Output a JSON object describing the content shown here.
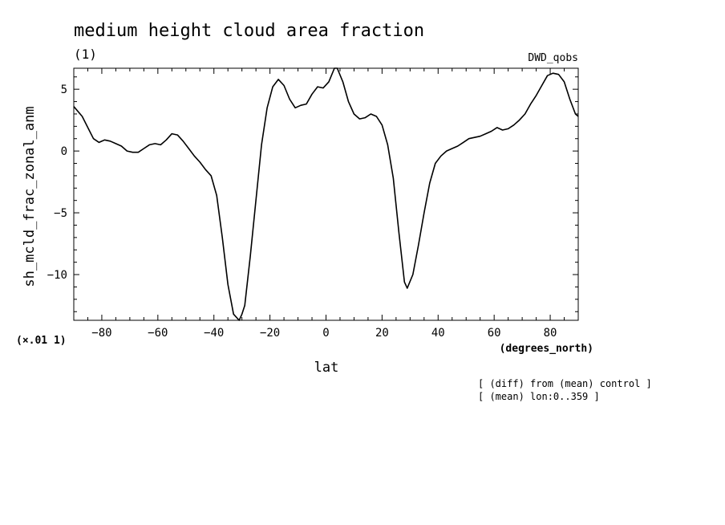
{
  "header": {
    "title": "medium height cloud area fraction",
    "subtitle": "(1)",
    "dataset": "DWD_qobs"
  },
  "axes": {
    "ylabel": "sh_mcld_frac_zonal_anm",
    "xlabel": "lat",
    "x_units": "(degrees_north)",
    "y_scale": "(×.01 1)",
    "x_tick_labels": [
      "−80",
      "−60",
      "−40",
      "−20",
      "0",
      "20",
      "40",
      "60",
      "80"
    ],
    "y_tick_labels": [
      "5",
      "0",
      "−5",
      "−10"
    ]
  },
  "notes": {
    "line1": "[ (diff) from (mean) control ]",
    "line2": "[ (mean) lon:0..359 ]"
  },
  "chart_data": {
    "type": "line",
    "title": "medium height cloud area fraction",
    "subtitle": "(1)",
    "xlabel": "lat",
    "ylabel": "sh_mcld_frac_zonal_anm",
    "x_units": "degrees_north",
    "y_scale_factor": 0.01,
    "xlim": [
      -90,
      90
    ],
    "ylim": [
      -13.7,
      6.7
    ],
    "x_ticks": [
      -80,
      -60,
      -40,
      -20,
      0,
      20,
      40,
      60,
      80
    ],
    "y_ticks": [
      5,
      0,
      -5,
      -10
    ],
    "grid": false,
    "series": [
      {
        "name": "DWD_qobs",
        "x": [
          -90,
          -87,
          -85,
          -83,
          -81,
          -79,
          -77,
          -75,
          -73,
          -71,
          -69,
          -67,
          -65,
          -63,
          -61,
          -59,
          -57,
          -55,
          -53,
          -51,
          -49,
          -47,
          -45,
          -43,
          -41,
          -39,
          -37,
          -35,
          -33,
          -31,
          -30,
          -29,
          -27,
          -25,
          -23,
          -21,
          -19,
          -17,
          -15,
          -13,
          -11,
          -9,
          -7,
          -5,
          -3,
          -1,
          1,
          3,
          4,
          6,
          8,
          10,
          12,
          14,
          16,
          18,
          20,
          22,
          24,
          26,
          28,
          29,
          31,
          33,
          35,
          37,
          39,
          41,
          43,
          45,
          47,
          49,
          51,
          53,
          55,
          57,
          59,
          61,
          63,
          65,
          67,
          69,
          71,
          73,
          75,
          77,
          79,
          81,
          83,
          85,
          87,
          89,
          90
        ],
        "values": [
          3.6,
          2.8,
          1.9,
          1.0,
          0.7,
          0.9,
          0.8,
          0.6,
          0.4,
          0.0,
          -0.1,
          -0.1,
          0.2,
          0.5,
          0.6,
          0.5,
          0.9,
          1.4,
          1.3,
          0.8,
          0.2,
          -0.4,
          -0.9,
          -1.5,
          -2.0,
          -3.6,
          -7.0,
          -10.8,
          -13.2,
          -13.7,
          -13.2,
          -12.5,
          -8.5,
          -4.0,
          0.5,
          3.5,
          5.2,
          5.8,
          5.3,
          4.2,
          3.5,
          3.7,
          3.8,
          4.6,
          5.2,
          5.1,
          5.6,
          6.7,
          6.7,
          5.6,
          4.0,
          3.0,
          2.6,
          2.7,
          3.0,
          2.8,
          2.1,
          0.5,
          -2.2,
          -6.6,
          -10.6,
          -11.1,
          -10.0,
          -7.6,
          -5.0,
          -2.6,
          -1.0,
          -0.4,
          0.0,
          0.2,
          0.4,
          0.7,
          1.0,
          1.1,
          1.2,
          1.4,
          1.6,
          1.9,
          1.7,
          1.8,
          2.1,
          2.5,
          3.0,
          3.8,
          4.5,
          5.3,
          6.1,
          6.3,
          6.2,
          5.6,
          4.2,
          3.0,
          2.8
        ]
      }
    ]
  }
}
